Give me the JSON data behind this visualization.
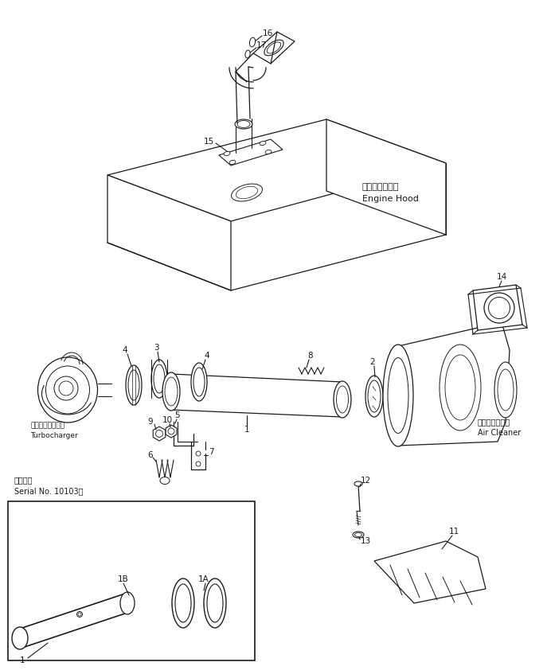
{
  "bg_color": "#ffffff",
  "line_color": "#1a1a1a",
  "fig_width": 6.87,
  "fig_height": 8.42,
  "dpi": 100,
  "labels": {
    "engine_hood_jp": "エンジンフード",
    "engine_hood_en": "Engine Hood",
    "turbo_jp": "ターボチャージャ",
    "turbo_en": "Turbocharger",
    "air_cleaner_jp": "エアークリーナ",
    "air_cleaner_en": "Air Cleaner",
    "serial_jp": "適用号機",
    "serial_en": "Serial No. 10103～"
  }
}
